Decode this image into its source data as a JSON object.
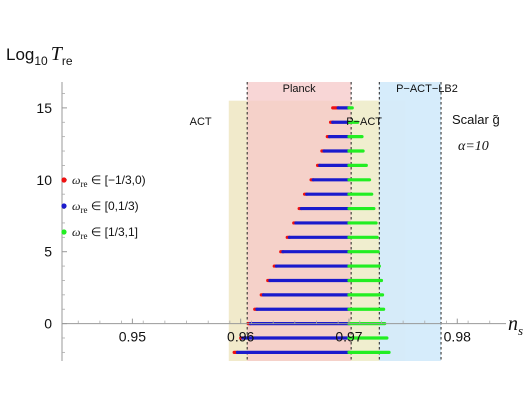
{
  "chart_data": {
    "type": "scatter",
    "title": "",
    "xlabel": "n_s",
    "ylabel": "Log10 T_re",
    "xlim": [
      0.9435,
      0.9845
    ],
    "ylim": [
      -2.6,
      16.8
    ],
    "x_ticks": [
      0.95,
      0.96,
      0.97,
      0.98
    ],
    "x_tick_labels": [
      "0.95",
      "0.96",
      "0.97",
      "0.98"
    ],
    "y_ticks": [
      0,
      5,
      10,
      15
    ],
    "y_tick_labels": [
      "0",
      "5",
      "10",
      "15"
    ],
    "grid": false,
    "axis_label_x": {
      "base": "n",
      "sub": "s"
    },
    "axis_label_y": {
      "prefix": "Log",
      "prefix_sub": "10",
      "var": "T",
      "var_sub": "re"
    },
    "regions": [
      {
        "name": "ACT",
        "label": "ACT",
        "x_range": [
          0.9589,
          0.9752
        ],
        "y_range": [
          -2.6,
          15.5
        ],
        "color": "#efe6c2"
      },
      {
        "name": "Planck",
        "label": "Planck",
        "x_range": [
          0.9606,
          0.9702
        ],
        "y_range": [
          -2.6,
          16.8
        ],
        "color": "#f5c8c8"
      },
      {
        "name": "P-ACT",
        "label": "P−ACT",
        "x_range": [
          0.9702,
          0.9728
        ],
        "y_range": [
          -2.6,
          15.5
        ],
        "color": "#f0eed0"
      },
      {
        "name": "P-ACT-LB2",
        "label": "P−ACT−LB2",
        "x_range": [
          0.9728,
          0.9785
        ],
        "y_range": [
          -2.6,
          16.8
        ],
        "color": "#d4ebfb"
      }
    ],
    "dashed_lines": [
      0.9606,
      0.9702,
      0.9728,
      0.9785
    ],
    "annotations": {
      "model": "Scalar g̃",
      "alpha": "α=10"
    },
    "legend": {
      "position": "left",
      "entries": [
        {
          "symbol": "ω",
          "sub": "re",
          "text": " ∈ [−1/3,0)",
          "color": "#ee1111"
        },
        {
          "symbol": "ω",
          "sub": "re",
          "text": " ∈ [0,1/3)",
          "color": "#1a1acc"
        },
        {
          "symbol": "ω",
          "sub": "re",
          "text": " ∈ [1/3,1]",
          "color": "#22ee22"
        }
      ]
    },
    "series": [
      {
        "name": "ω_re ∈ [−1/3,0)",
        "color": "#ee1111",
        "rows": [
          {
            "y": 15,
            "x0": 0.9685,
            "x1": 0.969
          },
          {
            "y": 14,
            "x0": 0.9683,
            "x1": 0.9685
          },
          {
            "y": 13,
            "x0": 0.968,
            "x1": 0.9682
          },
          {
            "y": 12,
            "x0": 0.9675,
            "x1": 0.9677
          },
          {
            "y": 11,
            "x0": 0.9671,
            "x1": 0.9673
          },
          {
            "y": 10,
            "x0": 0.9665,
            "x1": 0.9667
          },
          {
            "y": 9,
            "x0": 0.9659,
            "x1": 0.9661
          },
          {
            "y": 8,
            "x0": 0.9654,
            "x1": 0.9656
          },
          {
            "y": 7,
            "x0": 0.9649,
            "x1": 0.9651
          },
          {
            "y": 6,
            "x0": 0.9643,
            "x1": 0.9645
          },
          {
            "y": 5,
            "x0": 0.9637,
            "x1": 0.9639
          },
          {
            "y": 4,
            "x0": 0.9631,
            "x1": 0.9633
          },
          {
            "y": 3,
            "x0": 0.9625,
            "x1": 0.9627
          },
          {
            "y": 2,
            "x0": 0.9619,
            "x1": 0.9621
          },
          {
            "y": 1,
            "x0": 0.9613,
            "x1": 0.9615
          },
          {
            "y": 0,
            "x0": 0.9607,
            "x1": 0.9609
          },
          {
            "y": -1,
            "x0": 0.96,
            "x1": 0.9602
          },
          {
            "y": -2,
            "x0": 0.9594,
            "x1": 0.9597
          }
        ]
      },
      {
        "name": "ω_re ∈ [0,1/3)",
        "color": "#1a1acc",
        "rows": [
          {
            "y": 15,
            "x0": 0.969,
            "x1": 0.97
          },
          {
            "y": 14,
            "x0": 0.9685,
            "x1": 0.97
          },
          {
            "y": 13,
            "x0": 0.9682,
            "x1": 0.97
          },
          {
            "y": 12,
            "x0": 0.9677,
            "x1": 0.97
          },
          {
            "y": 11,
            "x0": 0.9673,
            "x1": 0.97
          },
          {
            "y": 10,
            "x0": 0.9667,
            "x1": 0.97
          },
          {
            "y": 9,
            "x0": 0.9661,
            "x1": 0.97
          },
          {
            "y": 8,
            "x0": 0.9656,
            "x1": 0.97
          },
          {
            "y": 7,
            "x0": 0.9651,
            "x1": 0.97
          },
          {
            "y": 6,
            "x0": 0.9645,
            "x1": 0.97
          },
          {
            "y": 5,
            "x0": 0.9639,
            "x1": 0.97
          },
          {
            "y": 4,
            "x0": 0.9633,
            "x1": 0.97
          },
          {
            "y": 3,
            "x0": 0.9627,
            "x1": 0.97
          },
          {
            "y": 2,
            "x0": 0.9621,
            "x1": 0.97
          },
          {
            "y": 1,
            "x0": 0.9615,
            "x1": 0.97
          },
          {
            "y": 0,
            "x0": 0.9609,
            "x1": 0.97
          },
          {
            "y": -1,
            "x0": 0.9602,
            "x1": 0.97
          },
          {
            "y": -2,
            "x0": 0.9597,
            "x1": 0.97
          }
        ]
      },
      {
        "name": "ω_re ∈ [1/3,1]",
        "color": "#22ee22",
        "rows": [
          {
            "y": 15,
            "x0": 0.97,
            "x1": 0.9703
          },
          {
            "y": 14,
            "x0": 0.97,
            "x1": 0.9708
          },
          {
            "y": 13,
            "x0": 0.97,
            "x1": 0.9712
          },
          {
            "y": 12,
            "x0": 0.97,
            "x1": 0.9713
          },
          {
            "y": 11,
            "x0": 0.97,
            "x1": 0.9716
          },
          {
            "y": 10,
            "x0": 0.97,
            "x1": 0.9719
          },
          {
            "y": 9,
            "x0": 0.97,
            "x1": 0.9721
          },
          {
            "y": 8,
            "x0": 0.97,
            "x1": 0.9723
          },
          {
            "y": 7,
            "x0": 0.97,
            "x1": 0.9725
          },
          {
            "y": 6,
            "x0": 0.97,
            "x1": 0.9726
          },
          {
            "y": 5,
            "x0": 0.97,
            "x1": 0.9727
          },
          {
            "y": 4,
            "x0": 0.97,
            "x1": 0.9728
          },
          {
            "y": 3,
            "x0": 0.97,
            "x1": 0.973
          },
          {
            "y": 2,
            "x0": 0.97,
            "x1": 0.9731
          },
          {
            "y": 1,
            "x0": 0.97,
            "x1": 0.9732
          },
          {
            "y": 0,
            "x0": 0.97,
            "x1": 0.9733
          },
          {
            "y": -1,
            "x0": 0.97,
            "x1": 0.9735
          },
          {
            "y": -2,
            "x0": 0.97,
            "x1": 0.9737
          }
        ]
      }
    ]
  }
}
